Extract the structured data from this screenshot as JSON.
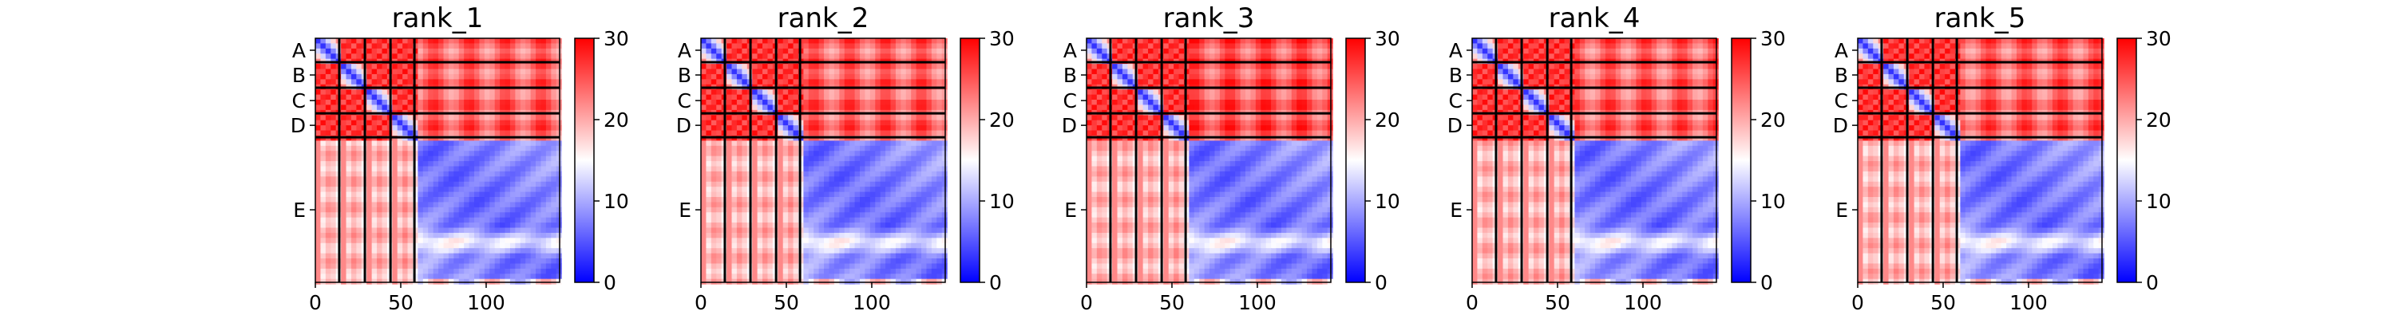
{
  "chart_data": [
    {
      "type": "heatmap",
      "title": "rank_1",
      "chains": [
        "A",
        "B",
        "C",
        "D",
        "E"
      ],
      "chain_boundaries": [
        0,
        14,
        29,
        44,
        58,
        143
      ],
      "xticks": [
        0,
        50,
        100
      ],
      "colorbar": {
        "min": 0,
        "max": 30,
        "ticks": [
          0,
          10,
          20,
          30
        ],
        "colormap": "bwr"
      },
      "intra_chain_aligned": "high-to-low gradient pattern, low error along diagonal",
      "features": {
        "interchain_AD_vs_E": 26,
        "intra_E": 6,
        "intra_AD": 3,
        "E_band_mid": 15
      }
    },
    {
      "type": "heatmap",
      "title": "rank_2",
      "chains": [
        "A",
        "B",
        "C",
        "D",
        "E"
      ],
      "chain_boundaries": [
        0,
        14,
        29,
        44,
        58,
        143
      ],
      "xticks": [
        0,
        50,
        100
      ],
      "colorbar": {
        "min": 0,
        "max": 30,
        "ticks": [
          0,
          10,
          20,
          30
        ],
        "colormap": "bwr"
      },
      "features": {
        "interchain_AD_vs_E": 26,
        "intra_E": 6,
        "intra_AD": 3,
        "E_band_mid": 15
      }
    },
    {
      "type": "heatmap",
      "title": "rank_3",
      "chains": [
        "A",
        "B",
        "C",
        "D",
        "E"
      ],
      "chain_boundaries": [
        0,
        14,
        29,
        44,
        58,
        143
      ],
      "xticks": [
        0,
        50,
        100
      ],
      "colorbar": {
        "min": 0,
        "max": 30,
        "ticks": [
          0,
          10,
          20,
          30
        ],
        "colormap": "bwr"
      },
      "features": {
        "interchain_AD_vs_E": 27,
        "intra_E": 6,
        "intra_AD": 3,
        "E_band_mid": 15
      }
    },
    {
      "type": "heatmap",
      "title": "rank_4",
      "chains": [
        "A",
        "B",
        "C",
        "D",
        "E"
      ],
      "chain_boundaries": [
        0,
        14,
        29,
        44,
        58,
        143
      ],
      "xticks": [
        0,
        50,
        100
      ],
      "colorbar": {
        "min": 0,
        "max": 30,
        "ticks": [
          0,
          10,
          20,
          30
        ],
        "colormap": "bwr"
      },
      "features": {
        "interchain_AD_vs_E": 26,
        "intra_E": 6,
        "intra_AD": 3,
        "E_band_mid": 15
      }
    },
    {
      "type": "heatmap",
      "title": "rank_5",
      "chains": [
        "A",
        "B",
        "C",
        "D",
        "E"
      ],
      "chain_boundaries": [
        0,
        14,
        29,
        44,
        58,
        143
      ],
      "xticks": [
        0,
        50,
        100
      ],
      "colorbar": {
        "min": 0,
        "max": 30,
        "ticks": [
          0,
          10,
          20,
          30
        ],
        "colormap": "bwr"
      },
      "features": {
        "interchain_AD_vs_E": 26,
        "intra_E": 6,
        "intra_AD": 3,
        "E_band_mid": 15
      }
    }
  ]
}
